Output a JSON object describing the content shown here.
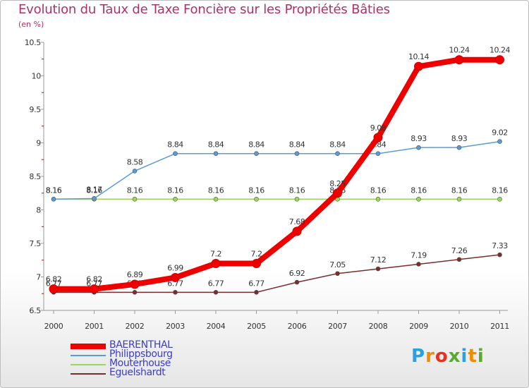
{
  "chart_data": {
    "type": "line",
    "title": "Evolution du Taux de Taxe Foncière sur les Propriétés Bâties",
    "ylabel": "(en %)",
    "xlabel": "",
    "categories": [
      "2000",
      "2001",
      "2002",
      "2003",
      "2004",
      "2005",
      "2006",
      "2007",
      "2008",
      "2009",
      "2010",
      "2011"
    ],
    "ylim": [
      6.5,
      10.5
    ],
    "yticks": [
      "6.5",
      "7",
      "7.5",
      "8",
      "8.5",
      "9",
      "9.5",
      "10",
      "10.5"
    ],
    "series": [
      {
        "name": "BAERENTHAL",
        "color": "#ee0000",
        "values": [
          6.82,
          6.82,
          6.89,
          6.99,
          7.2,
          7.2,
          7.68,
          8.25,
          9.08,
          10.14,
          10.24,
          10.24
        ],
        "labels": [
          "6.82",
          "6.82",
          "6.89",
          "6.99",
          "7.2",
          "7.2",
          "7.68",
          "8.25",
          "9.08",
          "10.14",
          "10.24",
          "10.24"
        ]
      },
      {
        "name": "Philippsbourg",
        "color": "#5b9bd5",
        "values": [
          8.16,
          8.17,
          8.58,
          8.84,
          8.84,
          8.84,
          8.84,
          8.84,
          8.84,
          8.93,
          8.93,
          9.02
        ],
        "labels": [
          "8.16",
          "8.17",
          "8.58",
          "8.84",
          "8.84",
          "8.84",
          "8.84",
          "8.84",
          "8.84",
          "8.93",
          "8.93",
          "9.02"
        ]
      },
      {
        "name": "Mouterhouse",
        "color": "#99d65b",
        "values": [
          8.16,
          8.16,
          8.16,
          8.16,
          8.16,
          8.16,
          8.16,
          8.16,
          8.16,
          8.16,
          8.16,
          8.16
        ],
        "labels": [
          "8.16",
          "8.16",
          "8.16",
          "8.16",
          "8.16",
          "8.16",
          "8.16",
          "8.16",
          "8.16",
          "8.16",
          "8.16",
          "8.16"
        ]
      },
      {
        "name": "Eguelshardt",
        "color": "#7b2c2c",
        "values": [
          6.77,
          6.77,
          6.77,
          6.77,
          6.77,
          6.77,
          6.92,
          7.05,
          7.12,
          7.19,
          7.26,
          7.33
        ],
        "labels": [
          "6.77",
          "6.77",
          "6.77",
          "6.77",
          "6.77",
          "6.77",
          "6.92",
          "7.05",
          "7.12",
          "7.19",
          "7.26",
          "7.33"
        ]
      }
    ],
    "legend_position": "bottom-left"
  },
  "logo": {
    "letters": [
      "P",
      "r",
      "o",
      "x",
      "i",
      "t",
      "i"
    ],
    "colors": [
      "#2aa0dc",
      "#f08c00",
      "#e6321e",
      "#5aaa32",
      "#2aa0dc",
      "#f08c00",
      "#5aaa32"
    ]
  }
}
